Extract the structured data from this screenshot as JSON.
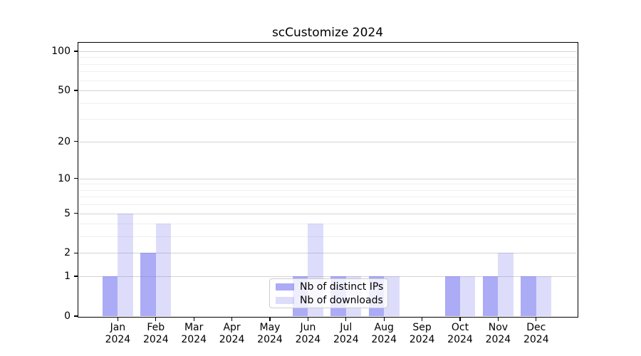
{
  "chart_data": {
    "type": "bar",
    "title": "scCustomize 2024",
    "categories": [
      "Jan",
      "Feb",
      "Mar",
      "Apr",
      "May",
      "Jun",
      "Jul",
      "Aug",
      "Sep",
      "Oct",
      "Nov",
      "Dec"
    ],
    "x_year": "2024",
    "series": [
      {
        "name": "Nb of distinct IPs",
        "color": "rgba(102,102,238,0.55)",
        "values": [
          1,
          2,
          0,
          0,
          0,
          1,
          1,
          1,
          0,
          1,
          1,
          1
        ]
      },
      {
        "name": "Nb of downloads",
        "color": "rgba(102,102,238,0.22)",
        "values": [
          5,
          4,
          0,
          0,
          0,
          4,
          1,
          1,
          0,
          1,
          2,
          1
        ]
      }
    ],
    "y_scale": "log1p",
    "ylim": [
      0,
      116
    ],
    "y_ticks": [
      0,
      1,
      2,
      5,
      10,
      20,
      50,
      100
    ],
    "y_minor_gridlines": [
      3,
      4,
      6,
      7,
      8,
      9,
      30,
      40,
      60,
      70,
      80,
      90
    ],
    "grid": true,
    "legend_position": "lower center",
    "colors": {
      "gridline_major": "#d4d4d4",
      "gridline_minor": "#efefef",
      "spine": "#000000"
    }
  }
}
